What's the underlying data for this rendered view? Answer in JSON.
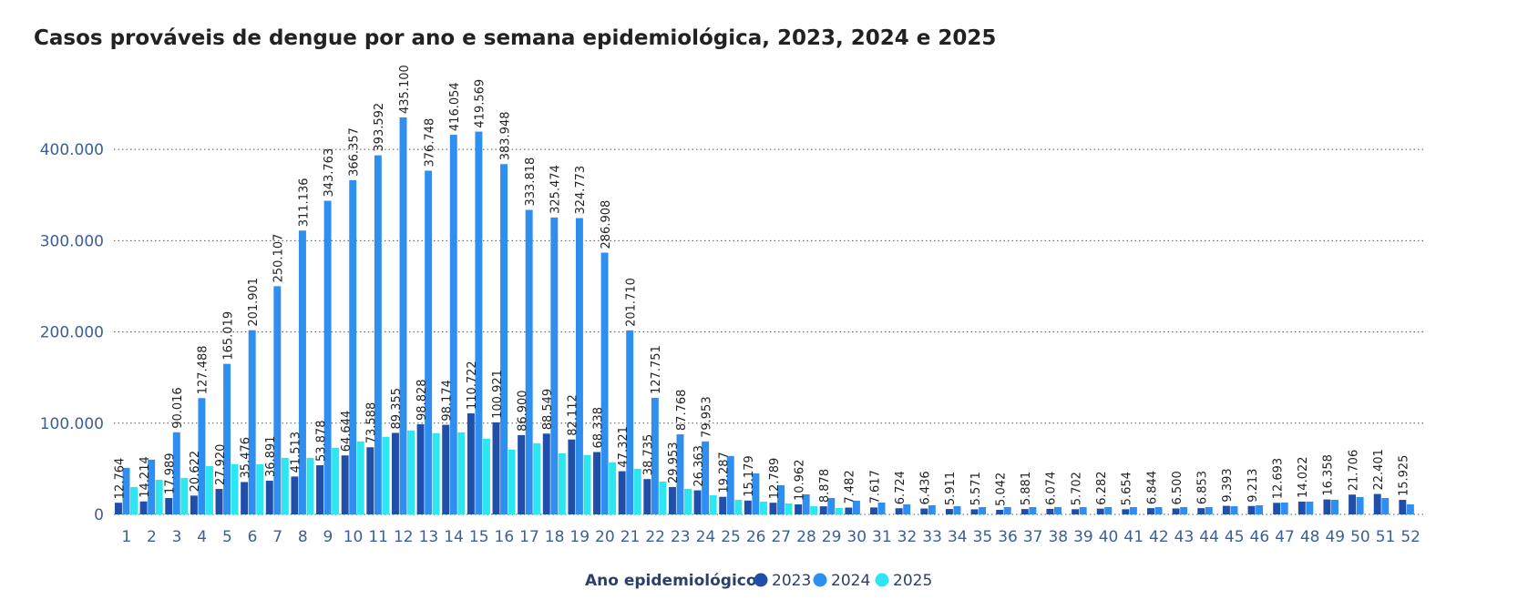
{
  "chart_data": {
    "type": "bar",
    "title": "Casos prováveis de dengue por ano e semana epidemiológica, 2023, 2024 e 2025",
    "categories": [
      "1",
      "2",
      "3",
      "4",
      "5",
      "6",
      "7",
      "8",
      "9",
      "10",
      "11",
      "12",
      "13",
      "14",
      "15",
      "16",
      "17",
      "18",
      "19",
      "20",
      "21",
      "22",
      "23",
      "24",
      "25",
      "26",
      "27",
      "28",
      "29",
      "30",
      "31",
      "32",
      "33",
      "34",
      "35",
      "36",
      "37",
      "38",
      "39",
      "40",
      "41",
      "42",
      "43",
      "44",
      "45",
      "46",
      "47",
      "48",
      "49",
      "50",
      "51",
      "52"
    ],
    "ylim": [
      0,
      460000
    ],
    "yticks": [
      0,
      100000,
      200000,
      300000,
      400000
    ],
    "ytick_labels": [
      "0",
      "100.000",
      "200.000",
      "300.000",
      "400.000"
    ],
    "grid": "horizontal-dotted",
    "legend": {
      "title": "Ano epidemiológico",
      "position": "bottom-center"
    },
    "series": [
      {
        "name": "2023",
        "color": "#1f4fa8",
        "values": [
          12764,
          14214,
          17989,
          20622,
          27920,
          35476,
          36891,
          41513,
          53878,
          64644,
          73588,
          89355,
          98828,
          98174,
          110722,
          100921,
          86900,
          88549,
          82112,
          68338,
          47321,
          38735,
          29953,
          26363,
          19287,
          15179,
          12789,
          10962,
          8878,
          7482,
          7617,
          6724,
          6436,
          5911,
          5571,
          5042,
          5881,
          6074,
          5702,
          6282,
          5654,
          6844,
          6500,
          6853,
          9393,
          9213,
          12693,
          14022,
          16358,
          21706,
          22401,
          15925
        ],
        "labels": [
          "12.764",
          "14.214",
          "17.989",
          "20.622",
          "27.920",
          "35.476",
          "36.891",
          "41.513",
          "53.878",
          "64.644",
          "73.588",
          "89.355",
          "98.828",
          "98.174",
          "110.722",
          "100.921",
          "86.900",
          "88.549",
          "82.112",
          "68.338",
          "47.321",
          "38.735",
          "29.953",
          "26.363",
          "19.287",
          "15.179",
          "12.789",
          "10.962",
          "8.878",
          "7.482",
          "7.617",
          "6.724",
          "6.436",
          "5.911",
          "5.571",
          "5.042",
          "5.881",
          "6.074",
          "5.702",
          "6.282",
          "5.654",
          "6.844",
          "6.500",
          "6.853",
          "9.393",
          "9.213",
          "12.693",
          "14.022",
          "16.358",
          "21.706",
          "22.401",
          "15.925"
        ]
      },
      {
        "name": "2024",
        "color": "#2e8ff0",
        "values": [
          51000,
          60000,
          90016,
          127488,
          165019,
          201901,
          250107,
          311136,
          343763,
          366357,
          393592,
          435100,
          376748,
          416054,
          419569,
          383948,
          333818,
          325474,
          324773,
          286908,
          201710,
          127751,
          87768,
          79953,
          64000,
          45000,
          32000,
          22000,
          18000,
          15000,
          13000,
          11000,
          10000,
          9000,
          8000,
          8000,
          8000,
          8000,
          8000,
          8000,
          8000,
          8000,
          8000,
          8000,
          9000,
          10000,
          13000,
          14000,
          16000,
          19000,
          18000,
          11000
        ],
        "labels": [
          "",
          "",
          "90.016",
          "127.488",
          "165.019",
          "201.901",
          "250.107",
          "311.136",
          "343.763",
          "366.357",
          "393.592",
          "435.100",
          "376.748",
          "416.054",
          "419.569",
          "383.948",
          "333.818",
          "325.474",
          "324.773",
          "286.908",
          "201.710",
          "127.751",
          "87.768",
          "79.953",
          "",
          "",
          "",
          "",
          "",
          "",
          "",
          "",
          "",
          "",
          "",
          "",
          "",
          "",
          "",
          "",
          "",
          "",
          "",
          "",
          "",
          "",
          "",
          "",
          "",
          "",
          "",
          ""
        ]
      },
      {
        "name": "2025",
        "color": "#2ee6f0",
        "values": [
          30000,
          38000,
          40000,
          53000,
          55000,
          55000,
          62000,
          62000,
          73000,
          80000,
          85000,
          92000,
          89000,
          90000,
          83000,
          71000,
          78000,
          67000,
          65000,
          57000,
          50000,
          36000,
          28000,
          21000,
          16000,
          14000,
          12000,
          9000,
          7000,
          0,
          0,
          0,
          0,
          0,
          0,
          0,
          0,
          0,
          0,
          0,
          0,
          0,
          0,
          0,
          0,
          0,
          0,
          0,
          0,
          0,
          0,
          0
        ],
        "labels": []
      }
    ]
  }
}
